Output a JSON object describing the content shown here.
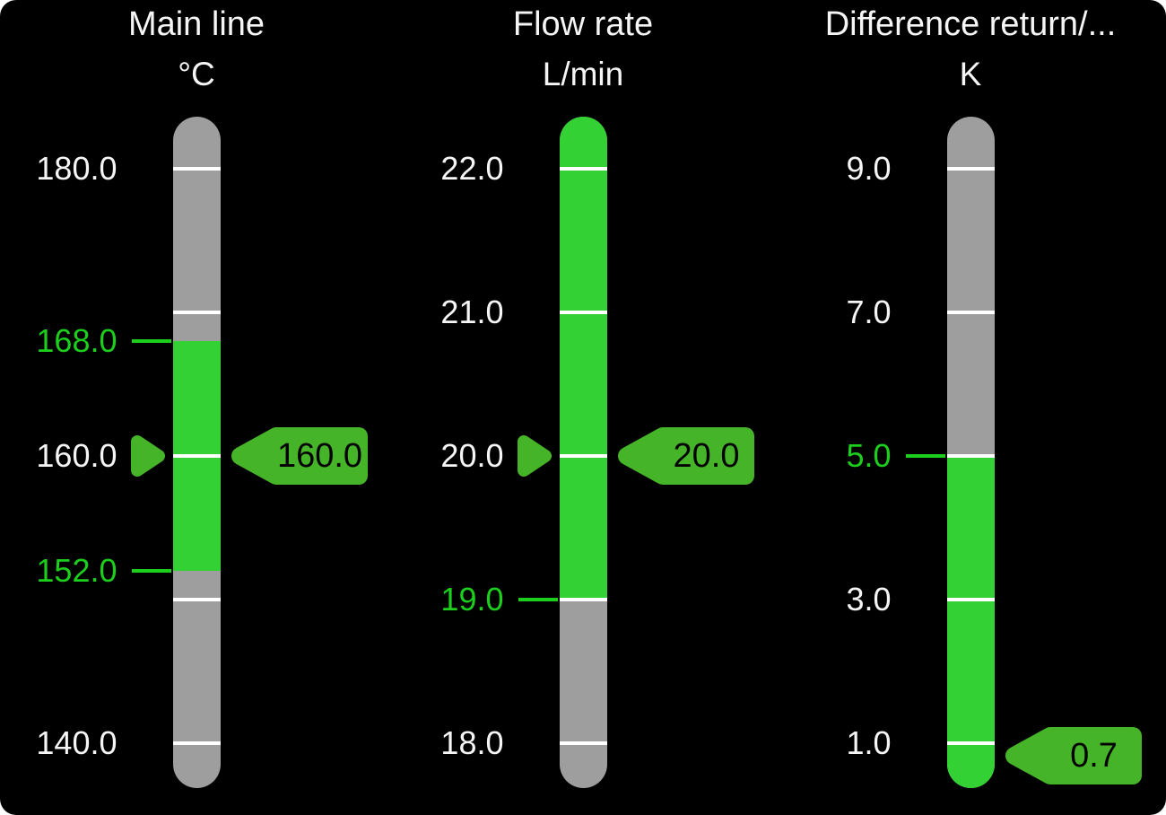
{
  "colors": {
    "background": "#000000",
    "bar_gray": "#9e9e9e",
    "bar_green": "#33d133",
    "marker_green": "#46b428",
    "limit_green": "#1ccf1c",
    "label_white": "#f5f5f5",
    "tick_white": "#ffffff",
    "tag_text": "#000000"
  },
  "gauges": [
    {
      "id": "main-line",
      "title": "Main line",
      "unit": "°C",
      "scale": {
        "min": 140.0,
        "max": 180.0
      },
      "labels": [
        {
          "text": "180.0",
          "value": 180.0,
          "is_limit": false
        },
        {
          "text": "168.0",
          "value": 168.0,
          "is_limit": true
        },
        {
          "text": "160.0",
          "value": 160.0,
          "is_limit": false
        },
        {
          "text": "152.0",
          "value": 152.0,
          "is_limit": true
        },
        {
          "text": "140.0",
          "value": 140.0,
          "is_limit": false
        }
      ],
      "ticks": [
        180,
        170,
        160,
        150,
        140
      ],
      "limit_lines": [
        168,
        152
      ],
      "green_zone": {
        "from": 152,
        "to": 168
      },
      "value": 160.0,
      "value_text": "160.0",
      "pointer_visible": true
    },
    {
      "id": "flow-rate",
      "title": "Flow rate",
      "unit": "L/min",
      "scale": {
        "min": 18.0,
        "max": 22.0
      },
      "labels": [
        {
          "text": "22.0",
          "value": 22.0,
          "is_limit": false
        },
        {
          "text": "21.0",
          "value": 21.0,
          "is_limit": false
        },
        {
          "text": "20.0",
          "value": 20.0,
          "is_limit": false
        },
        {
          "text": "19.0",
          "value": 19.0,
          "is_limit": true
        },
        {
          "text": "18.0",
          "value": 18.0,
          "is_limit": false
        }
      ],
      "ticks": [
        22,
        21,
        20,
        19,
        18
      ],
      "limit_lines": [
        19
      ],
      "green_zone": {
        "from": 19,
        "to": null
      },
      "value": 20.0,
      "value_text": "20.0",
      "pointer_visible": true
    },
    {
      "id": "difference-return",
      "title": "Difference return/...",
      "unit": "K",
      "scale": {
        "min": 1.0,
        "max": 9.0
      },
      "labels": [
        {
          "text": "9.0",
          "value": 9.0,
          "is_limit": false
        },
        {
          "text": "7.0",
          "value": 7.0,
          "is_limit": false
        },
        {
          "text": "5.0",
          "value": 5.0,
          "is_limit": true
        },
        {
          "text": "3.0",
          "value": 3.0,
          "is_limit": false
        },
        {
          "text": "1.0",
          "value": 1.0,
          "is_limit": false
        }
      ],
      "ticks": [
        9,
        7,
        5,
        3,
        1
      ],
      "limit_lines": [
        5
      ],
      "green_zone": {
        "from": null,
        "to": 5
      },
      "value": 0.7,
      "value_text": "0.7",
      "pointer_visible": false
    }
  ]
}
